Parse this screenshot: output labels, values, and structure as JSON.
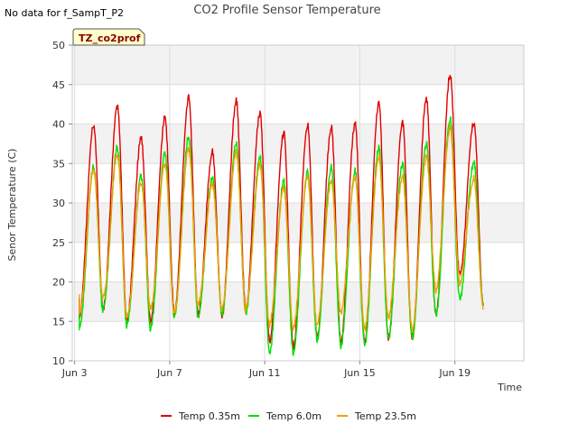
{
  "nodata_text": "No data for f_SampT_P2",
  "chart_data": {
    "type": "line",
    "title": "CO2 Profile Sensor Temperature",
    "xlabel": "Time",
    "ylabel": "Senor Temperature (C)",
    "badge": "TZ_co2prof",
    "xlim": [
      2.9,
      21.9
    ],
    "ylim": [
      10,
      50
    ],
    "yticks": [
      10,
      15,
      20,
      25,
      30,
      35,
      40,
      45,
      50
    ],
    "xticks": [
      {
        "day": 3,
        "label": "Jun 3"
      },
      {
        "day": 7,
        "label": "Jun 7"
      },
      {
        "day": 11,
        "label": "Jun 11"
      },
      {
        "day": 15,
        "label": "Jun 15"
      },
      {
        "day": 19,
        "label": "Jun 19"
      }
    ],
    "grid": true,
    "legend_position": "bottom",
    "series": [
      {
        "name": "Temp 0.35m",
        "color": "#e00000",
        "daily_min": [
          15.5,
          16.5,
          15.0,
          15.0,
          16.0,
          16.0,
          15.8,
          16.5,
          12.5,
          11.8,
          13.0,
          12.5,
          12.5,
          13.0,
          13.0,
          16.0,
          21.0,
          17.0
        ],
        "daily_max": [
          40.0,
          42.5,
          38.5,
          41.0,
          43.5,
          36.5,
          43.0,
          41.5,
          39.0,
          39.8,
          39.5,
          40.0,
          42.5,
          40.0,
          43.0,
          46.0,
          40.0
        ]
      },
      {
        "name": "Temp 6.0m",
        "color": "#00e000",
        "daily_min": [
          14.0,
          16.5,
          14.5,
          14.0,
          15.5,
          15.5,
          15.8,
          16.0,
          11.0,
          11.0,
          12.8,
          12.0,
          12.2,
          13.0,
          13.0,
          16.0,
          18.0,
          17.0
        ],
        "daily_max": [
          34.5,
          37.0,
          33.5,
          36.5,
          38.5,
          33.5,
          37.8,
          36.0,
          33.0,
          34.0,
          34.5,
          34.0,
          37.0,
          35.0,
          37.5,
          40.5,
          35.0
        ]
      },
      {
        "name": "Temp 23.5m",
        "color": "#f0a000",
        "daily_min": [
          16.0,
          18.0,
          15.5,
          16.5,
          16.0,
          17.0,
          16.5,
          16.5,
          14.5,
          14.0,
          14.5,
          16.0,
          14.0,
          15.5,
          14.0,
          19.0,
          20.0,
          16.5
        ],
        "daily_max": [
          34.0,
          36.0,
          32.5,
          35.0,
          37.0,
          32.5,
          36.5,
          35.0,
          32.0,
          33.5,
          33.0,
          33.5,
          36.0,
          33.5,
          36.0,
          39.5,
          33.0
        ]
      }
    ]
  }
}
